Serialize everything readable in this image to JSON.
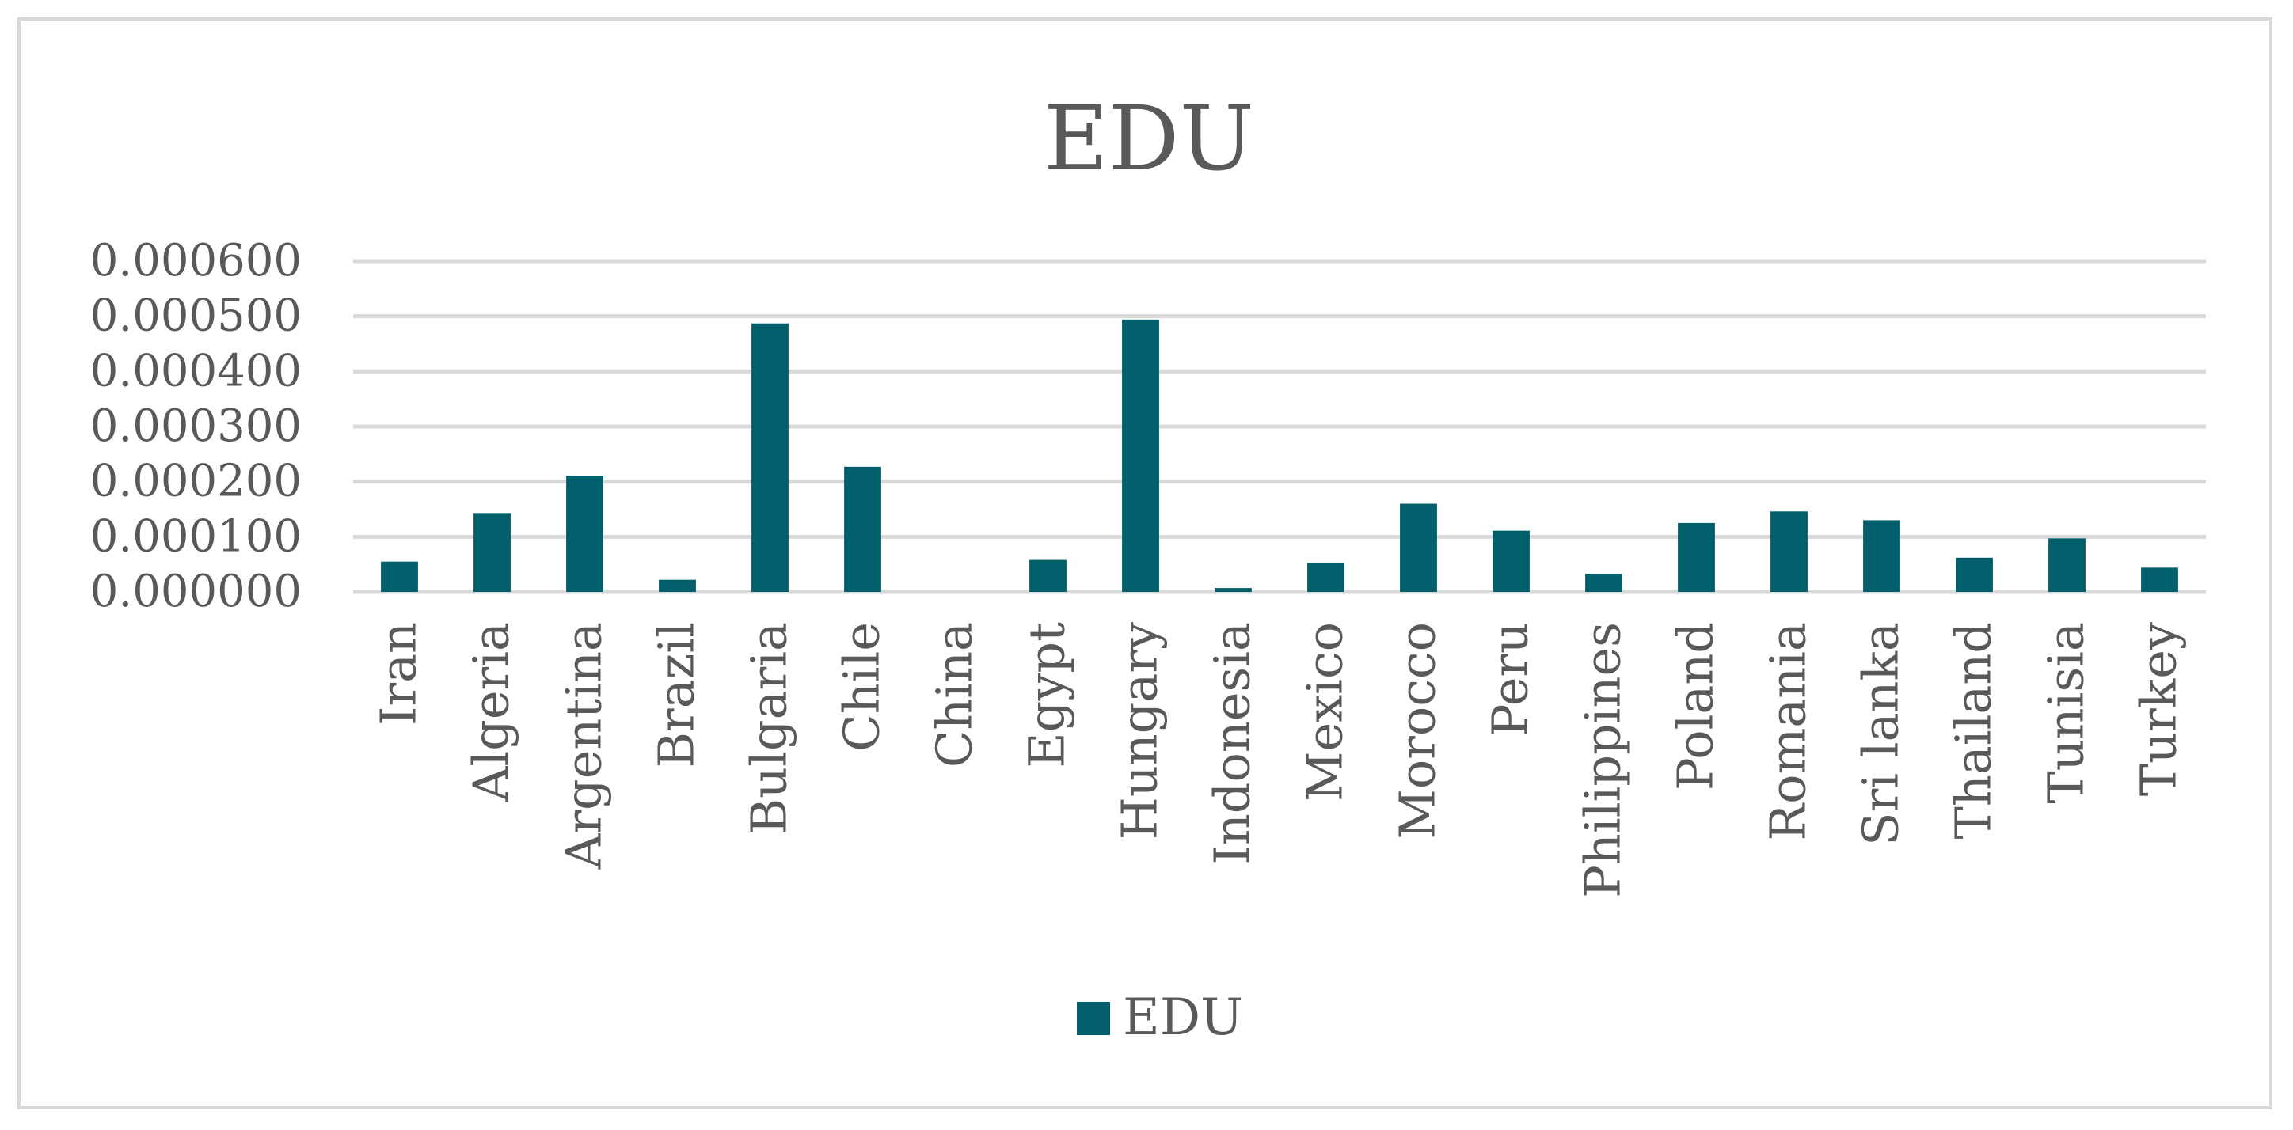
{
  "chart_data": {
    "type": "bar",
    "title": "EDU",
    "xlabel": "",
    "ylabel": "",
    "categories": [
      "Iran",
      "Algeria",
      "Argentina",
      "Brazil",
      "Bulgaria",
      "Chile",
      "China",
      "Egypt",
      "Hungary",
      "Indonesia",
      "Mexico",
      "Morocco",
      "Peru",
      "Philippines",
      "Poland",
      "Romania",
      "Sri lanka",
      "Thailand",
      "Tunisia",
      "Turkey"
    ],
    "series": [
      {
        "name": "EDU",
        "color": "#005f6b",
        "values": [
          5.5e-05,
          0.000143,
          0.000211,
          2.2e-05,
          0.000487,
          0.000227,
          0.0,
          5.8e-05,
          0.000494,
          7e-06,
          5.2e-05,
          0.00016,
          0.000111,
          3.3e-05,
          0.000125,
          0.000146,
          0.00013,
          6.2e-05,
          9.7e-05,
          4.4e-05
        ]
      }
    ],
    "ylim": [
      0,
      0.0006
    ],
    "yticks": [
      "0.000000",
      "0.000100",
      "0.000200",
      "0.000300",
      "0.000400",
      "0.000500",
      "0.000600"
    ],
    "grid": true,
    "legend": "bottom-center"
  }
}
